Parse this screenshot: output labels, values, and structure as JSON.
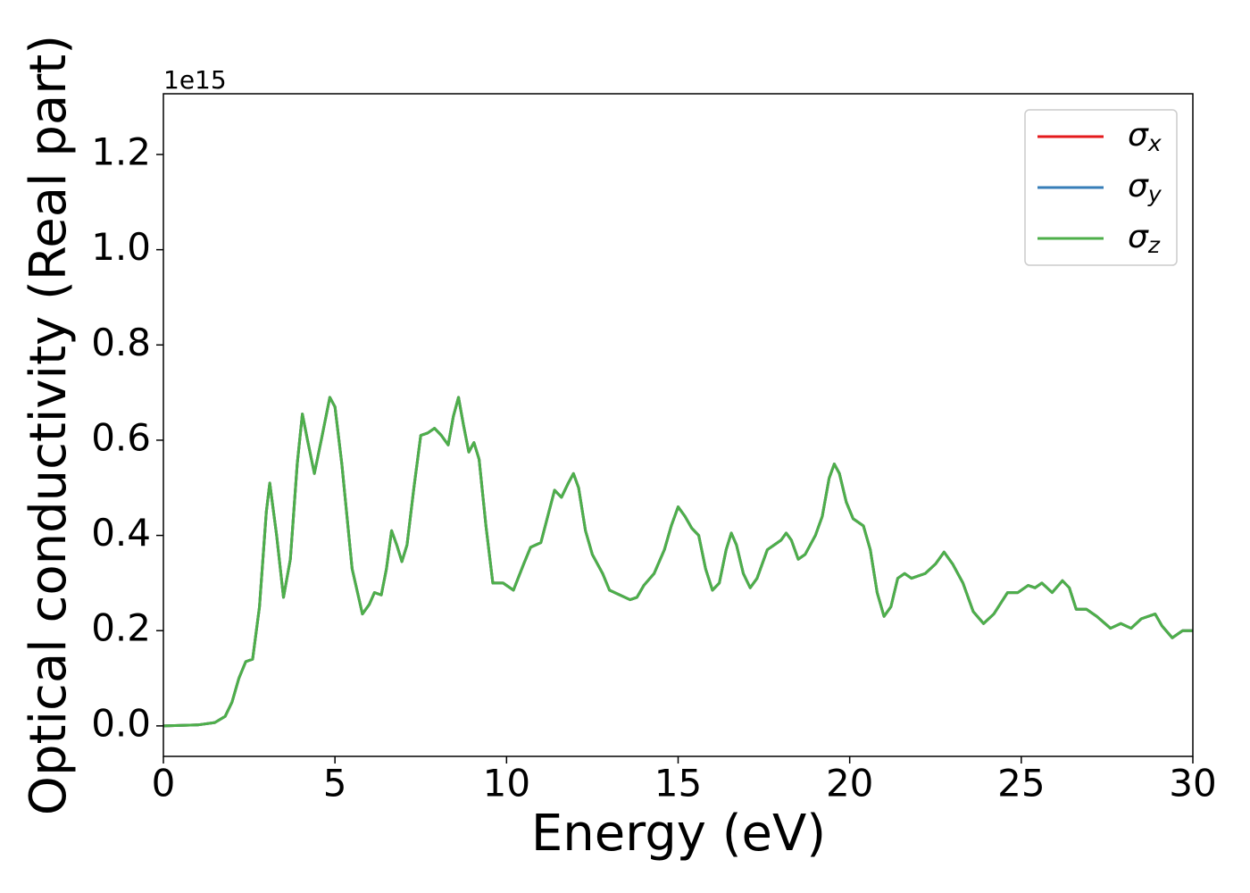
{
  "chart_data": {
    "type": "line",
    "xlabel": "Energy (eV)",
    "ylabel": "Optical conductivity (Real part)",
    "y_offset_label": "1e15",
    "x": [
      0,
      1,
      1.5,
      1.8,
      2.0,
      2.2,
      2.4,
      2.6,
      2.8,
      3.0,
      3.1,
      3.3,
      3.5,
      3.7,
      3.9,
      4.05,
      4.2,
      4.4,
      4.6,
      4.85,
      5.0,
      5.2,
      5.5,
      5.8,
      6.0,
      6.15,
      6.35,
      6.5,
      6.65,
      6.8,
      6.95,
      7.1,
      7.3,
      7.5,
      7.7,
      7.9,
      8.1,
      8.3,
      8.45,
      8.6,
      8.75,
      8.9,
      9.05,
      9.2,
      9.4,
      9.6,
      9.9,
      10.2,
      10.5,
      10.7,
      11.0,
      11.2,
      11.4,
      11.6,
      11.8,
      11.95,
      12.1,
      12.3,
      12.5,
      12.8,
      13.0,
      13.3,
      13.6,
      13.8,
      14.0,
      14.3,
      14.6,
      14.8,
      15.0,
      15.2,
      15.4,
      15.6,
      15.8,
      16.0,
      16.2,
      16.4,
      16.55,
      16.7,
      16.9,
      17.1,
      17.3,
      17.6,
      17.8,
      18.0,
      18.15,
      18.3,
      18.5,
      18.7,
      19.0,
      19.2,
      19.4,
      19.55,
      19.7,
      19.9,
      20.1,
      20.4,
      20.6,
      20.8,
      21.0,
      21.2,
      21.4,
      21.6,
      21.8,
      22.2,
      22.5,
      22.75,
      23.0,
      23.3,
      23.6,
      23.9,
      24.2,
      24.6,
      24.9,
      25.2,
      25.4,
      25.6,
      25.9,
      26.2,
      26.4,
      26.6,
      26.9,
      27.2,
      27.6,
      27.9,
      28.2,
      28.5,
      28.9,
      29.1,
      29.4,
      29.7,
      30.0
    ],
    "series": [
      {
        "name": "σx",
        "color": "#e41a1c",
        "values": [
          0,
          0.002,
          0.007,
          0.02,
          0.05,
          0.1,
          0.135,
          0.14,
          0.25,
          0.45,
          0.51,
          0.4,
          0.27,
          0.35,
          0.55,
          0.655,
          0.6,
          0.53,
          0.6,
          0.69,
          0.67,
          0.55,
          0.33,
          0.235,
          0.255,
          0.28,
          0.275,
          0.33,
          0.41,
          0.38,
          0.345,
          0.38,
          0.5,
          0.61,
          0.615,
          0.625,
          0.61,
          0.59,
          0.65,
          0.69,
          0.63,
          0.575,
          0.595,
          0.56,
          0.42,
          0.3,
          0.3,
          0.285,
          0.34,
          0.375,
          0.385,
          0.44,
          0.495,
          0.48,
          0.51,
          0.53,
          0.5,
          0.41,
          0.36,
          0.32,
          0.285,
          0.275,
          0.265,
          0.27,
          0.295,
          0.32,
          0.37,
          0.42,
          0.46,
          0.44,
          0.415,
          0.4,
          0.33,
          0.285,
          0.3,
          0.37,
          0.405,
          0.38,
          0.32,
          0.29,
          0.31,
          0.37,
          0.38,
          0.39,
          0.405,
          0.39,
          0.35,
          0.36,
          0.4,
          0.44,
          0.52,
          0.55,
          0.53,
          0.47,
          0.435,
          0.42,
          0.37,
          0.28,
          0.23,
          0.25,
          0.31,
          0.32,
          0.31,
          0.32,
          0.34,
          0.365,
          0.34,
          0.3,
          0.24,
          0.215,
          0.235,
          0.28,
          0.28,
          0.295,
          0.29,
          0.3,
          0.28,
          0.305,
          0.29,
          0.245,
          0.245,
          0.23,
          0.205,
          0.215,
          0.205,
          0.225,
          0.235,
          0.21,
          0.185,
          0.2,
          0.2
        ]
      },
      {
        "name": "σy",
        "color": "#377eb8",
        "values": [
          0,
          0.002,
          0.007,
          0.02,
          0.05,
          0.1,
          0.135,
          0.14,
          0.25,
          0.45,
          0.51,
          0.4,
          0.27,
          0.35,
          0.55,
          0.655,
          0.6,
          0.53,
          0.6,
          0.69,
          0.67,
          0.55,
          0.33,
          0.235,
          0.255,
          0.28,
          0.275,
          0.33,
          0.41,
          0.38,
          0.345,
          0.38,
          0.5,
          0.61,
          0.615,
          0.625,
          0.61,
          0.59,
          0.65,
          0.69,
          0.63,
          0.575,
          0.595,
          0.56,
          0.42,
          0.3,
          0.3,
          0.285,
          0.34,
          0.375,
          0.385,
          0.44,
          0.495,
          0.48,
          0.51,
          0.53,
          0.5,
          0.41,
          0.36,
          0.32,
          0.285,
          0.275,
          0.265,
          0.27,
          0.295,
          0.32,
          0.37,
          0.42,
          0.46,
          0.44,
          0.415,
          0.4,
          0.33,
          0.285,
          0.3,
          0.37,
          0.405,
          0.38,
          0.32,
          0.29,
          0.31,
          0.37,
          0.38,
          0.39,
          0.405,
          0.39,
          0.35,
          0.36,
          0.4,
          0.44,
          0.52,
          0.55,
          0.53,
          0.47,
          0.435,
          0.42,
          0.37,
          0.28,
          0.23,
          0.25,
          0.31,
          0.32,
          0.31,
          0.32,
          0.34,
          0.365,
          0.34,
          0.3,
          0.24,
          0.215,
          0.235,
          0.28,
          0.28,
          0.295,
          0.29,
          0.3,
          0.28,
          0.305,
          0.29,
          0.245,
          0.245,
          0.23,
          0.205,
          0.215,
          0.205,
          0.225,
          0.235,
          0.21,
          0.185,
          0.2,
          0.2
        ]
      },
      {
        "name": "σz",
        "color": "#4daf4a",
        "values": [
          0,
          0.002,
          0.007,
          0.02,
          0.05,
          0.1,
          0.135,
          0.14,
          0.25,
          0.45,
          0.51,
          0.4,
          0.27,
          0.35,
          0.55,
          0.655,
          0.6,
          0.53,
          0.6,
          0.69,
          0.67,
          0.55,
          0.33,
          0.235,
          0.255,
          0.28,
          0.275,
          0.33,
          0.41,
          0.38,
          0.345,
          0.38,
          0.5,
          0.61,
          0.615,
          0.625,
          0.61,
          0.59,
          0.65,
          0.69,
          0.63,
          0.575,
          0.595,
          0.56,
          0.42,
          0.3,
          0.3,
          0.285,
          0.34,
          0.375,
          0.385,
          0.44,
          0.495,
          0.48,
          0.51,
          0.53,
          0.5,
          0.41,
          0.36,
          0.32,
          0.285,
          0.275,
          0.265,
          0.27,
          0.295,
          0.32,
          0.37,
          0.42,
          0.46,
          0.44,
          0.415,
          0.4,
          0.33,
          0.285,
          0.3,
          0.37,
          0.405,
          0.38,
          0.32,
          0.29,
          0.31,
          0.37,
          0.38,
          0.39,
          0.405,
          0.39,
          0.35,
          0.36,
          0.4,
          0.44,
          0.52,
          0.55,
          0.53,
          0.47,
          0.435,
          0.42,
          0.37,
          0.28,
          0.23,
          0.25,
          0.31,
          0.32,
          0.31,
          0.32,
          0.34,
          0.365,
          0.34,
          0.3,
          0.24,
          0.215,
          0.235,
          0.28,
          0.28,
          0.295,
          0.29,
          0.3,
          0.28,
          0.305,
          0.29,
          0.245,
          0.245,
          0.23,
          0.205,
          0.215,
          0.205,
          0.225,
          0.235,
          0.21,
          0.185,
          0.2,
          0.2
        ]
      }
    ],
    "xlim": [
      0,
      30
    ],
    "xticks": [
      0,
      5,
      10,
      15,
      20,
      25,
      30
    ],
    "ylim": [
      -0.064,
      1.3275
    ],
    "yticks": [
      {
        "value": 0,
        "label": "0.0"
      },
      0.2,
      0.4,
      0.6,
      0.8,
      {
        "value": 1,
        "label": "1.0"
      },
      1.2
    ],
    "grid": false,
    "legend": "upper right"
  }
}
